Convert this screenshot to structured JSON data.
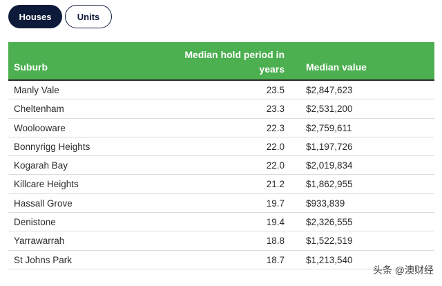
{
  "tabs": {
    "houses": "Houses",
    "units": "Units"
  },
  "table": {
    "headers": {
      "suburb": "Suburb",
      "hold_line1": "Median hold period in",
      "hold_line2": "years",
      "value": "Median value"
    },
    "rows": [
      {
        "suburb": "Manly Vale",
        "hold": "23.5",
        "value": "$2,847,623"
      },
      {
        "suburb": "Cheltenham",
        "hold": "23.3",
        "value": "$2,531,200"
      },
      {
        "suburb": "Woolooware",
        "hold": "22.3",
        "value": "$2,759,611"
      },
      {
        "suburb": "Bonnyrigg Heights",
        "hold": "22.0",
        "value": "$1,197,726"
      },
      {
        "suburb": "Kogarah Bay",
        "hold": "22.0",
        "value": "$2,019,834"
      },
      {
        "suburb": "Killcare Heights",
        "hold": "21.2",
        "value": "$1,862,955"
      },
      {
        "suburb": "Hassall Grove",
        "hold": "19.7",
        "value": "$933,839"
      },
      {
        "suburb": "Denistone",
        "hold": "19.4",
        "value": "$2,326,555"
      },
      {
        "suburb": "Yarrawarrah",
        "hold": "18.8",
        "value": "$1,522,519"
      },
      {
        "suburb": "St Johns Park",
        "hold": "18.7",
        "value": "$1,213,540"
      }
    ]
  },
  "watermark": "头条 @澳财经",
  "colors": {
    "header_bg": "#4caf50",
    "active_tab": "#0d1a3a"
  }
}
